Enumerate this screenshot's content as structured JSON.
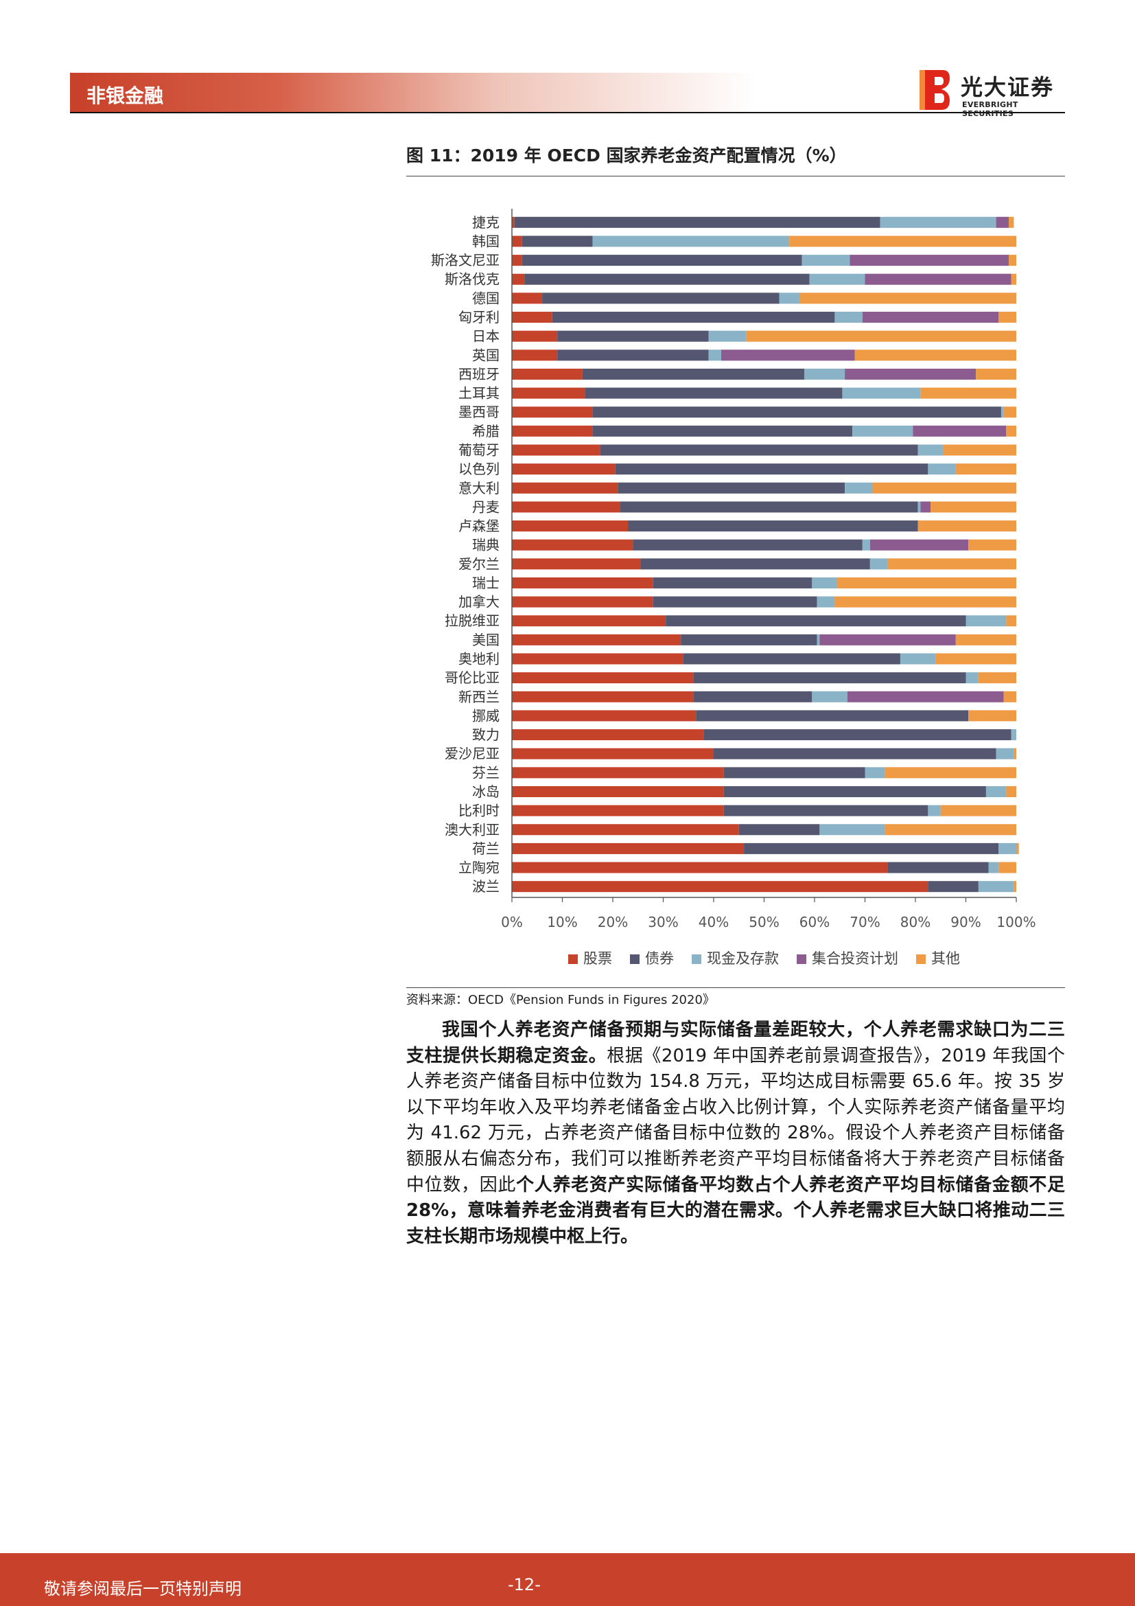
{
  "header": {
    "section": "非银金融",
    "logo_cn": "光大证券",
    "logo_en": "EVERBRIGHT SECURITIES"
  },
  "figure": {
    "title": "图 11：2019 年 OECD 国家养老金资产配置情况（%）",
    "source": "资料来源：OECD《Pension Funds in Figures 2020》"
  },
  "body": {
    "p1_bold": "我国个人养老资产储备预期与实际储备量差距较大，个人养老需求缺口为二三支柱提供长期稳定资金。",
    "p1_normal": "根据《2019 年中国养老前景调查报告》，2019 年我国个人养老资产储备目标中位数为 154.8 万元，平均达成目标需要 65.6 年。按 35 岁以下平均年收入及平均养老储备金占收入比例计算，个人实际养老资产储备量平均为 41.62 万元，占养老资产储备目标中位数的 28%。假设个人养老资产目标储备额服从右偏态分布，我们可以推断养老资产平均目标储备将大于养老资产目标储备中位数，因此",
    "p1_bold2": "个人养老资产实际储备平均数占个人养老资产平均目标储备金额不足 28%，意味着养老金消费者有巨大的潜在需求。个人养老需求巨大缺口将推动二三支柱长期市场规模中枢上行。"
  },
  "footer": {
    "note": "敬请参阅最后一页特别声明",
    "page": "-12-"
  },
  "chart_data": {
    "type": "bar",
    "orientation": "horizontal",
    "stacked": "percent",
    "title": "",
    "xlabel": "",
    "ylabel": "",
    "xlim": [
      0,
      100
    ],
    "xticks": [
      "0%",
      "10%",
      "20%",
      "30%",
      "40%",
      "50%",
      "60%",
      "70%",
      "80%",
      "90%",
      "100%"
    ],
    "legend_position": "bottom",
    "grid": false,
    "categories": [
      "捷克",
      "韩国",
      "斯洛文尼亚",
      "斯洛伐克",
      "德国",
      "匈牙利",
      "日本",
      "英国",
      "西班牙",
      "土耳其",
      "墨西哥",
      "希腊",
      "葡萄牙",
      "以色列",
      "意大利",
      "丹麦",
      "卢森堡",
      "瑞典",
      "爱尔兰",
      "瑞士",
      "加拿大",
      "拉脱维亚",
      "美国",
      "奥地利",
      "哥伦比亚",
      "新西兰",
      "挪威",
      "致力",
      "爱沙尼亚",
      "芬兰",
      "冰岛",
      "比利时",
      "澳大利亚",
      "荷兰",
      "立陶宛",
      "波兰"
    ],
    "series": [
      {
        "name": "股票",
        "color": "#c6432b",
        "values": [
          0.5,
          2,
          2,
          2.5,
          6,
          8,
          9,
          9,
          14,
          14.5,
          16,
          16,
          17.5,
          20.5,
          21,
          21.5,
          23,
          24,
          25.5,
          28,
          28,
          30.5,
          33.5,
          34,
          36,
          36,
          36.5,
          38,
          40,
          42,
          42,
          42,
          45,
          46,
          74.5,
          82.5
        ]
      },
      {
        "name": "债券",
        "color": "#55566f",
        "values": [
          72.5,
          14,
          55.5,
          56.5,
          47,
          56,
          30,
          30,
          44,
          51,
          81,
          51.5,
          63,
          62,
          45,
          59,
          57.5,
          45.5,
          45.5,
          31.5,
          32.5,
          59.5,
          27,
          43,
          54,
          23.5,
          54,
          61,
          56,
          28,
          52,
          40.5,
          16,
          50.5,
          20,
          10
        ]
      },
      {
        "name": "现金及存款",
        "color": "#8bb3c8",
        "values": [
          23,
          39,
          9.5,
          11,
          4,
          5.5,
          7.5,
          2.5,
          8,
          15.5,
          0.5,
          12,
          5,
          5.5,
          5.5,
          0.5,
          0,
          1.5,
          3.5,
          5,
          3.5,
          8,
          0.5,
          7,
          2.5,
          7,
          0,
          1,
          3.5,
          4,
          4,
          2.5,
          13,
          3.5,
          2,
          7
        ]
      },
      {
        "name": "集合投资计划",
        "color": "#8c5b8f",
        "values": [
          2.5,
          0,
          31.5,
          29,
          0,
          27,
          0,
          26.5,
          26,
          0,
          0,
          18.5,
          0,
          0,
          0,
          2,
          0,
          19.5,
          0,
          0,
          0,
          0,
          27,
          0,
          0,
          31,
          0,
          0,
          0,
          0,
          0,
          0,
          0,
          0,
          0,
          0
        ]
      },
      {
        "name": "其他",
        "color": "#ef9a45",
        "values": [
          1,
          45,
          1.5,
          1,
          43,
          3.5,
          53.5,
          32,
          8,
          19,
          2.5,
          2,
          14.5,
          12,
          28.5,
          17,
          19.5,
          9.5,
          25.5,
          35.5,
          36,
          2,
          12,
          16,
          7.5,
          2.5,
          9.5,
          0,
          0.5,
          26,
          2,
          15,
          26,
          0.5,
          3.5,
          0.5
        ]
      }
    ]
  }
}
